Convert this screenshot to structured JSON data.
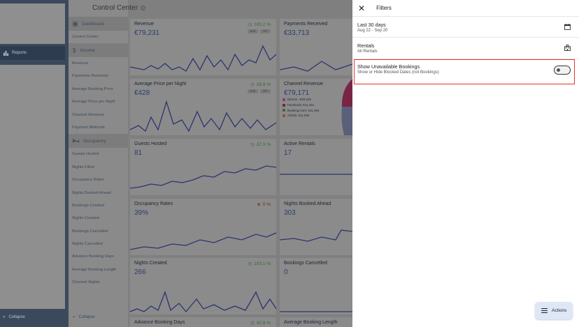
{
  "rail": {
    "reports_label": "Reports",
    "collapse_label": "Collapse"
  },
  "nav": {
    "dashboard_label": "Dashboard",
    "control_center_label": "Control Center",
    "income_label": "Income",
    "income_items": [
      "Revenue",
      "Payments Received",
      "Average Booking Price",
      "Average Price per Night",
      "Channel Revenue",
      "Payment Methods"
    ],
    "occupancy_label": "Occupancy",
    "occupancy_items": [
      "Guests Hosted",
      "Nights Filled",
      "Occupancy Rates",
      "Nights Booked Ahead",
      "Bookings Created",
      "Nights Created",
      "Bookings Cancelled",
      "Nights Cancelled",
      "Advance Booking Days",
      "Average Booking Length",
      "Channel Nights"
    ],
    "collapse_label": "Collapse"
  },
  "dashboard": {
    "title": "Control Center",
    "cards": [
      {
        "title": "Revenue",
        "value": "€79,231",
        "pct": "100.2 %",
        "trend": "up",
        "pills": [
          "EUR",
          "PPT"
        ]
      },
      {
        "title": "Payments Received",
        "value": "€33,713"
      },
      {
        "title": "Average Price per Night",
        "value": "€428",
        "pct": "28.9 %",
        "trend": "up",
        "pills": [
          "EUR",
          "PPT"
        ]
      },
      {
        "title": "Channel Revenue",
        "value": "€79,171"
      },
      {
        "title": "Guests Hosted",
        "value": "81",
        "pct": "37.3 %",
        "trend": "up"
      },
      {
        "title": "Active Rentals",
        "value": "17"
      },
      {
        "title": "Occupancy Rates",
        "value": "39%",
        "pct": "0 %",
        "trend": "down"
      },
      {
        "title": "Nights Booked Ahead",
        "value": "303"
      },
      {
        "title": "Nights Created",
        "value": "266",
        "pct": "103.1 %",
        "trend": "up"
      },
      {
        "title": "Bookings Cancelled",
        "value": "0"
      },
      {
        "title": "Advance Booking Days",
        "pct": "42.9 %",
        "trend": "up"
      },
      {
        "title": "Average Booking Length"
      }
    ],
    "channel_legend": [
      {
        "label": "Directs : €20,240",
        "color": "#8a3f63"
      },
      {
        "label": "Facebook: €11,451",
        "color": "#7a2445"
      },
      {
        "label": "Booking.Com: €11,284",
        "color": "#3c6b3c"
      },
      {
        "label": "Airbnb: €11,036",
        "color": "#8a5a26"
      }
    ]
  },
  "filters": {
    "title": "Filters",
    "date_range": {
      "label": "Last 30 days",
      "sub": "Aug 22 - Sep 20"
    },
    "rentals": {
      "label": "Rentals",
      "sub": "All Rentals"
    },
    "unavailable": {
      "label": "Show Unavailable Bookings",
      "sub": "Show or Hide Blocked Dates (not Bookings)",
      "enabled": false
    }
  },
  "actions": {
    "label": "Actions"
  },
  "colors": {
    "accent": "#2b3d6d",
    "highlight": "#e0352b",
    "up": "#2f6b2f",
    "down": "#7a2626"
  }
}
